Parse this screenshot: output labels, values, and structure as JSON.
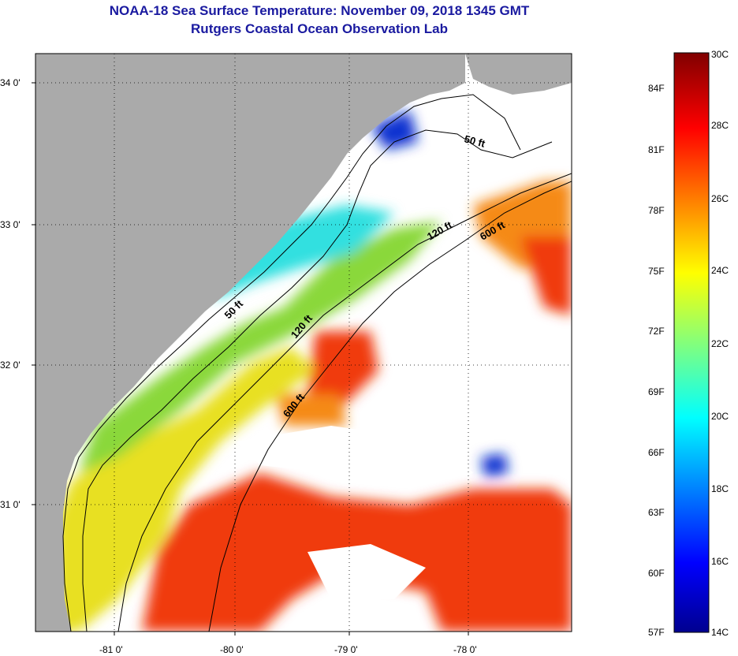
{
  "header": {
    "title": "NOAA-18 Sea Surface Temperature:  November 09, 2018 1345 GMT",
    "subtitle": "Rutgers Coastal Ocean Observation Lab"
  },
  "map": {
    "lat_labels": [
      "34 0'",
      "33 0'",
      "32 0'",
      "31 0'"
    ],
    "lon_labels": [
      "-81 0'",
      "-80 0'",
      "-79 0'",
      "-78 0'"
    ],
    "contours": {
      "c50a": "50 ft",
      "c50b": "50 ft",
      "c120a": "120 ft",
      "c120b": "120 ft",
      "c600a": "600 ft",
      "c600b": "600 ft"
    },
    "colors": {
      "land": "#aaaaaa",
      "cloud": "#ffffff",
      "warm": "#f03a10",
      "orange": "#f58a18",
      "yellow": "#e8e020",
      "green": "#8ad83a",
      "cyan": "#30e0e0",
      "blue": "#1030d0"
    }
  },
  "colorbar": {
    "celsius": [
      "30C",
      "28C",
      "26C",
      "24C",
      "22C",
      "20C",
      "18C",
      "16C",
      "14C"
    ],
    "fahrenheit": [
      "84F",
      "81F",
      "78F",
      "75F",
      "72F",
      "69F",
      "66F",
      "63F",
      "60F",
      "57F"
    ]
  }
}
